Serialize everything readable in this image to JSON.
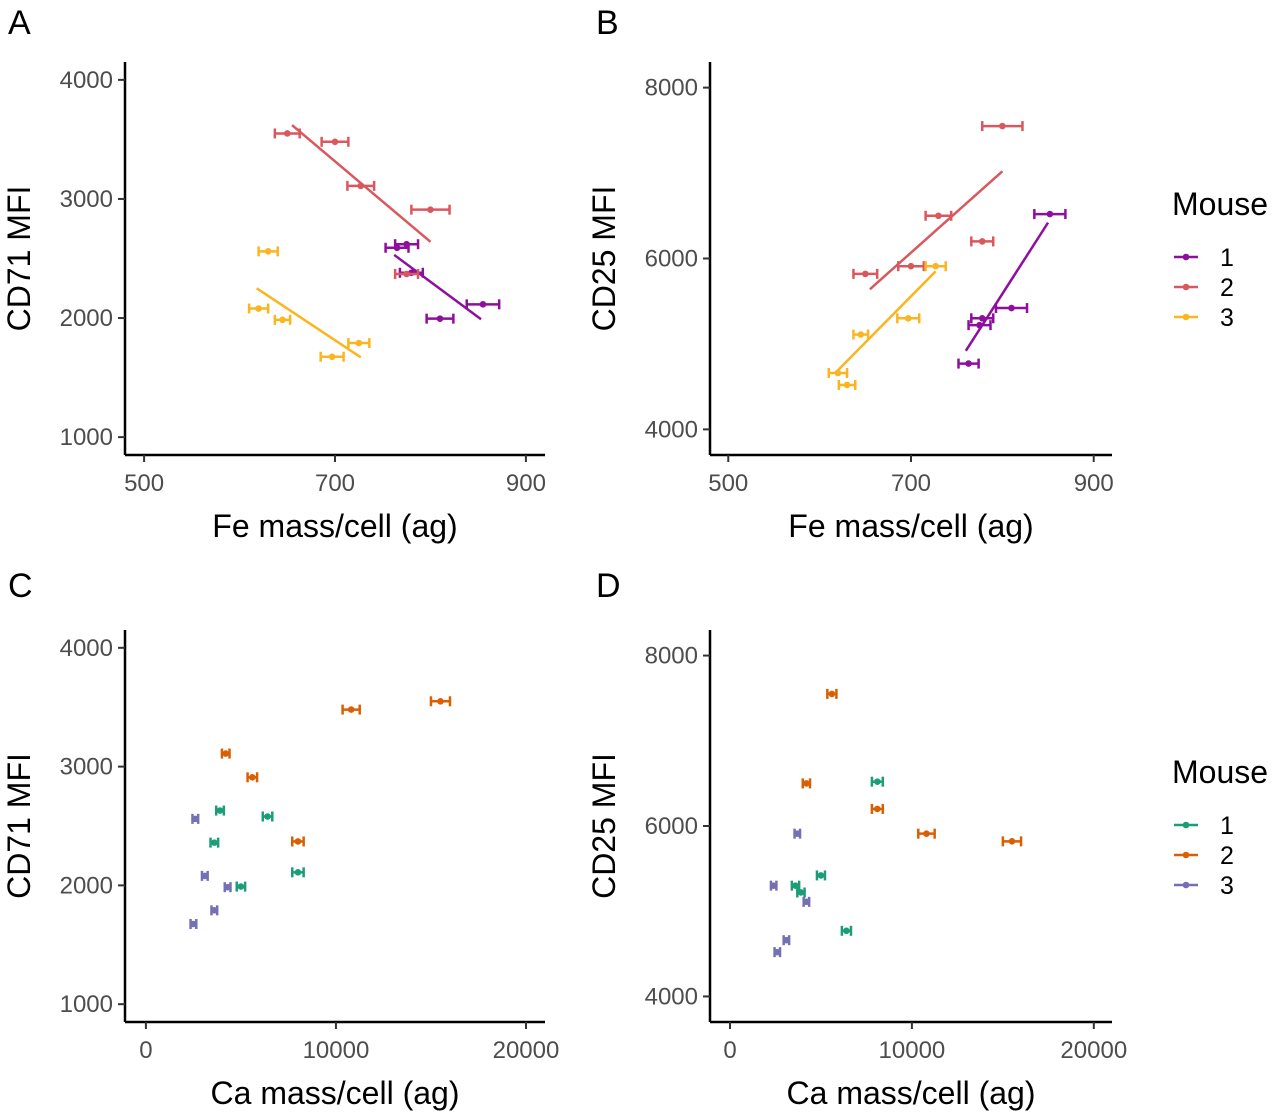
{
  "chart_data": [
    {
      "panel": "A",
      "type": "scatter",
      "xlabel": "Fe mass/cell (ag)",
      "ylabel": "CD71 MFI",
      "xlim": [
        480,
        920
      ],
      "ylim": [
        850,
        4150
      ],
      "xticks": [
        500,
        700,
        900
      ],
      "yticks": [
        1000,
        2000,
        3000,
        4000
      ],
      "xticklabels": [
        "500",
        "700",
        "900"
      ],
      "yticklabels": [
        "1000",
        "2000",
        "3000",
        "4000"
      ],
      "series": [
        {
          "name": "1",
          "color": "#8E0F9E",
          "points": [
            {
              "x": 775,
              "y": 2620,
              "xerr": 12
            },
            {
              "x": 765,
              "y": 2590,
              "xerr": 12
            },
            {
              "x": 780,
              "y": 2380,
              "xerr": 12
            },
            {
              "x": 810,
              "y": 1995,
              "xerr": 14
            },
            {
              "x": 855,
              "y": 2115,
              "xerr": 17
            }
          ],
          "fit": [
            [
              762,
              2530
            ],
            [
              853,
              1990
            ]
          ]
        },
        {
          "name": "2",
          "color": "#D9585E",
          "points": [
            {
              "x": 650,
              "y": 3550,
              "xerr": 13
            },
            {
              "x": 700,
              "y": 3480,
              "xerr": 14
            },
            {
              "x": 727,
              "y": 3110,
              "xerr": 14
            },
            {
              "x": 800,
              "y": 2910,
              "xerr": 20
            },
            {
              "x": 775,
              "y": 2370,
              "xerr": 12
            }
          ],
          "fit": [
            [
              655,
              3620
            ],
            [
              800,
              2640
            ]
          ]
        },
        {
          "name": "3",
          "color": "#FBB521",
          "points": [
            {
              "x": 630,
              "y": 2560,
              "xerr": 10
            },
            {
              "x": 620,
              "y": 2080,
              "xerr": 10
            },
            {
              "x": 645,
              "y": 1985,
              "xerr": 8
            },
            {
              "x": 725,
              "y": 1790,
              "xerr": 11
            },
            {
              "x": 697,
              "y": 1675,
              "xerr": 12
            }
          ],
          "fit": [
            [
              618,
              2250
            ],
            [
              727,
              1670
            ]
          ]
        }
      ]
    },
    {
      "panel": "B",
      "type": "scatter",
      "xlabel": "Fe mass/cell (ag)",
      "ylabel": "CD25 MFI",
      "xlim": [
        480,
        920
      ],
      "ylim": [
        3700,
        8300
      ],
      "xticks": [
        500,
        700,
        900
      ],
      "yticks": [
        4000,
        6000,
        8000
      ],
      "xticklabels": [
        "500",
        "700",
        "900"
      ],
      "yticklabels": [
        "4000",
        "6000",
        "8000"
      ],
      "series": [
        {
          "name": "1",
          "color": "#8E0F9E",
          "points": [
            {
              "x": 852,
              "y": 6520,
              "xerr": 17
            },
            {
              "x": 810,
              "y": 5420,
              "xerr": 17
            },
            {
              "x": 778,
              "y": 5300,
              "xerr": 12
            },
            {
              "x": 775,
              "y": 5220,
              "xerr": 12
            },
            {
              "x": 763,
              "y": 4770,
              "xerr": 11
            }
          ],
          "fit": [
            [
              760,
              4920
            ],
            [
              850,
              6420
            ]
          ]
        },
        {
          "name": "2",
          "color": "#D9585E",
          "points": [
            {
              "x": 800,
              "y": 7550,
              "xerr": 22
            },
            {
              "x": 730,
              "y": 6500,
              "xerr": 14
            },
            {
              "x": 778,
              "y": 6200,
              "xerr": 12
            },
            {
              "x": 700,
              "y": 5910,
              "xerr": 14
            },
            {
              "x": 650,
              "y": 5820,
              "xerr": 13
            }
          ],
          "fit": [
            [
              655,
              5640
            ],
            [
              800,
              7020
            ]
          ]
        },
        {
          "name": "3",
          "color": "#FBB521",
          "points": [
            {
              "x": 727,
              "y": 5910,
              "xerr": 11
            },
            {
              "x": 697,
              "y": 5300,
              "xerr": 12
            },
            {
              "x": 645,
              "y": 5110,
              "xerr": 8
            },
            {
              "x": 620,
              "y": 4660,
              "xerr": 10
            },
            {
              "x": 630,
              "y": 4520,
              "xerr": 9
            }
          ],
          "fit": [
            [
              618,
              4670
            ],
            [
              727,
              5850
            ]
          ]
        }
      ]
    },
    {
      "panel": "C",
      "type": "scatter",
      "xlabel": "Ca mass/cell (ag)",
      "ylabel": "CD71 MFI",
      "xlim": [
        -1100,
        21000
      ],
      "ylim": [
        850,
        4150
      ],
      "xticks": [
        0,
        10000,
        20000
      ],
      "yticks": [
        1000,
        2000,
        3000,
        4000
      ],
      "xticklabels": [
        "0",
        "10000",
        "20000"
      ],
      "yticklabels": [
        "1000",
        "2000",
        "3000",
        "4000"
      ],
      "series": [
        {
          "name": "1",
          "color": "#1B9E77",
          "points": [
            {
              "x": 3900,
              "y": 2630,
              "xerr": 200
            },
            {
              "x": 6400,
              "y": 2580,
              "xerr": 250
            },
            {
              "x": 3600,
              "y": 2360,
              "xerr": 200
            },
            {
              "x": 8000,
              "y": 2110,
              "xerr": 300
            },
            {
              "x": 5000,
              "y": 1990,
              "xerr": 220
            }
          ]
        },
        {
          "name": "2",
          "color": "#D95F02",
          "points": [
            {
              "x": 15500,
              "y": 3550,
              "xerr": 500
            },
            {
              "x": 10800,
              "y": 3480,
              "xerr": 450
            },
            {
              "x": 4200,
              "y": 3110,
              "xerr": 200
            },
            {
              "x": 5600,
              "y": 2910,
              "xerr": 250
            },
            {
              "x": 8000,
              "y": 2370,
              "xerr": 300
            }
          ]
        },
        {
          "name": "3",
          "color": "#7570B3",
          "points": [
            {
              "x": 2600,
              "y": 2560,
              "xerr": 150
            },
            {
              "x": 3100,
              "y": 2080,
              "xerr": 150
            },
            {
              "x": 4300,
              "y": 1985,
              "xerr": 150
            },
            {
              "x": 3600,
              "y": 1790,
              "xerr": 150
            },
            {
              "x": 2500,
              "y": 1675,
              "xerr": 150
            }
          ]
        }
      ]
    },
    {
      "panel": "D",
      "type": "scatter",
      "xlabel": "Ca mass/cell (ag)",
      "ylabel": "CD25 MFI",
      "xlim": [
        -1100,
        21000
      ],
      "ylim": [
        3700,
        8300
      ],
      "xticks": [
        0,
        10000,
        20000
      ],
      "yticks": [
        4000,
        6000,
        8000
      ],
      "xticklabels": [
        "0",
        "10000",
        "20000"
      ],
      "yticklabels": [
        "4000",
        "6000",
        "8000"
      ],
      "series": [
        {
          "name": "1",
          "color": "#1B9E77",
          "points": [
            {
              "x": 8100,
              "y": 6520,
              "xerr": 300
            },
            {
              "x": 5000,
              "y": 5420,
              "xerr": 220
            },
            {
              "x": 3600,
              "y": 5300,
              "xerr": 200
            },
            {
              "x": 3900,
              "y": 5220,
              "xerr": 200
            },
            {
              "x": 6400,
              "y": 4770,
              "xerr": 250
            }
          ]
        },
        {
          "name": "2",
          "color": "#D95F02",
          "points": [
            {
              "x": 5600,
              "y": 7550,
              "xerr": 250
            },
            {
              "x": 4200,
              "y": 6500,
              "xerr": 200
            },
            {
              "x": 8100,
              "y": 6200,
              "xerr": 300
            },
            {
              "x": 10800,
              "y": 5910,
              "xerr": 450
            },
            {
              "x": 15500,
              "y": 5820,
              "xerr": 500
            }
          ]
        },
        {
          "name": "3",
          "color": "#7570B3",
          "points": [
            {
              "x": 3700,
              "y": 5910,
              "xerr": 150
            },
            {
              "x": 2400,
              "y": 5300,
              "xerr": 150
            },
            {
              "x": 4200,
              "y": 5110,
              "xerr": 150
            },
            {
              "x": 3100,
              "y": 4660,
              "xerr": 150
            },
            {
              "x": 2600,
              "y": 4520,
              "xerr": 150
            }
          ]
        }
      ]
    }
  ],
  "legends": [
    {
      "title": "Mouse",
      "entries": [
        {
          "label": "1",
          "color": "#8E0F9E"
        },
        {
          "label": "2",
          "color": "#D9585E"
        },
        {
          "label": "3",
          "color": "#FBB521"
        }
      ]
    },
    {
      "title": "Mouse",
      "entries": [
        {
          "label": "1",
          "color": "#1B9E77"
        },
        {
          "label": "2",
          "color": "#D95F02"
        },
        {
          "label": "3",
          "color": "#7570B3"
        }
      ]
    }
  ]
}
